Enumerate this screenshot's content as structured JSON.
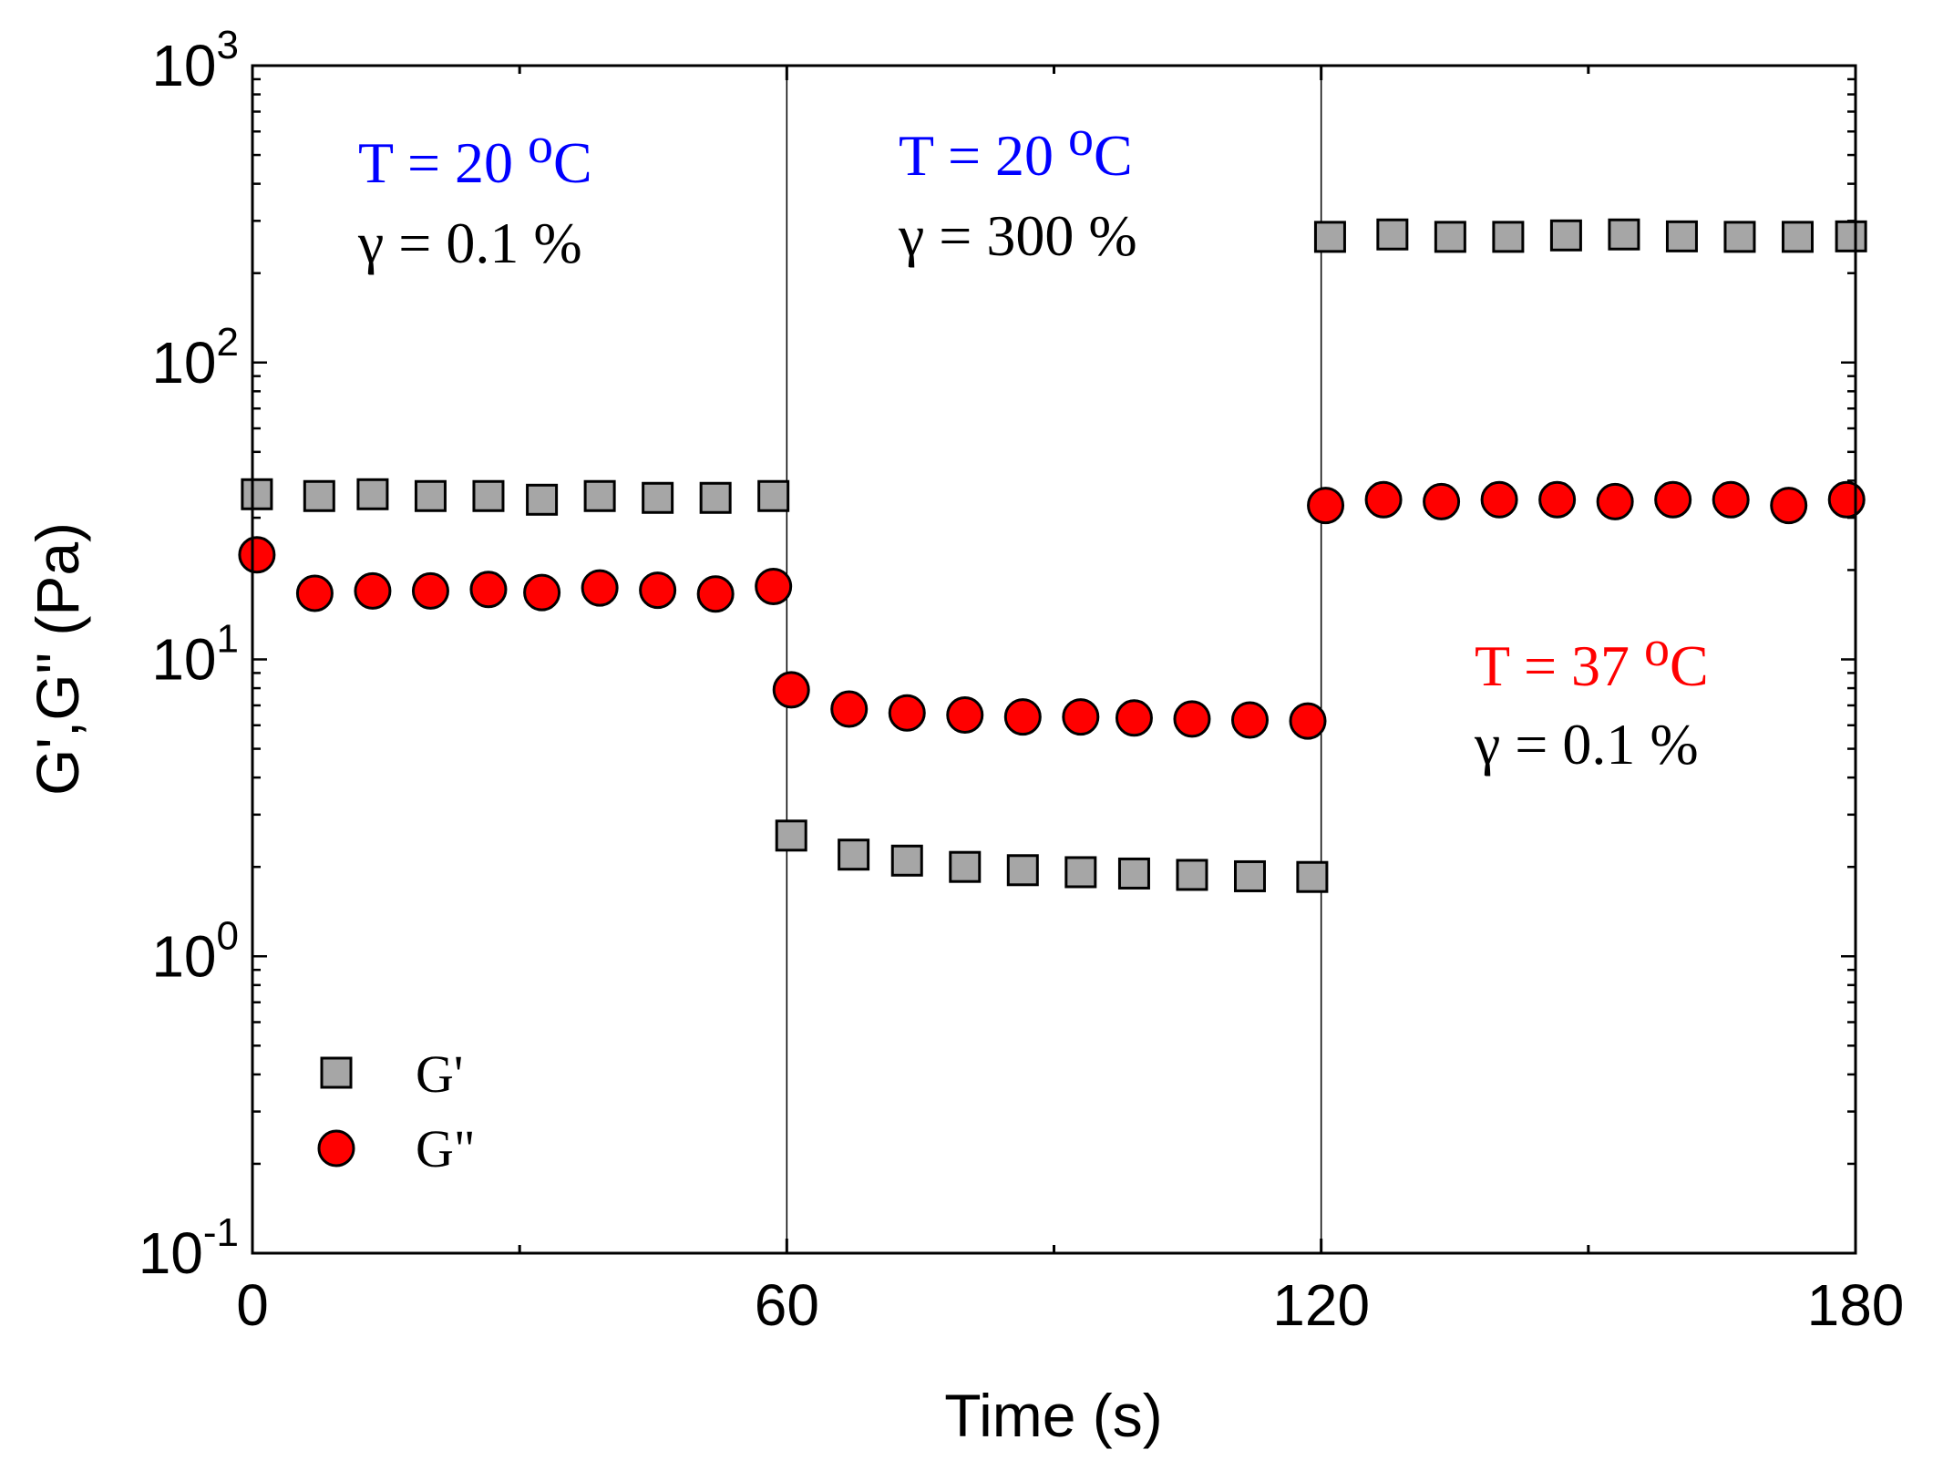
{
  "chart_data": {
    "type": "scatter",
    "title": "",
    "xlabel": "Time (s)",
    "ylabel": "G',G\" (Pa)",
    "xlim": [
      0,
      180
    ],
    "ylim": [
      0.1,
      1000
    ],
    "yscale": "log",
    "xticks": [
      0,
      60,
      120,
      180
    ],
    "xtick_labels": [
      "0",
      "60",
      "120",
      "180"
    ],
    "yticks": [
      {
        "value": 0.1,
        "base": "10",
        "exp": "-1"
      },
      {
        "value": 1,
        "base": "10",
        "exp": "0"
      },
      {
        "value": 10,
        "base": "10",
        "exp": "1"
      },
      {
        "value": 100,
        "base": "10",
        "exp": "2"
      },
      {
        "value": 1000,
        "base": "10",
        "exp": "3"
      }
    ],
    "vlines": [
      60,
      120
    ],
    "legend": {
      "position": "bottom-left"
    },
    "series": [
      {
        "name": "G'",
        "marker": "square",
        "color": "#a6a6a6",
        "x": [
          0.5,
          7.5,
          13.5,
          20,
          26.5,
          32.5,
          39,
          45.5,
          52,
          58.5,
          60.5,
          67.5,
          73.5,
          80,
          86.5,
          93,
          99,
          105.5,
          112,
          119,
          121,
          128,
          134.5,
          141,
          147.5,
          154,
          160.5,
          167,
          173.5,
          179.5
        ],
        "y": [
          36,
          35.5,
          36,
          35.5,
          35.5,
          34.5,
          35.5,
          35,
          35,
          35.5,
          2.55,
          2.2,
          2.1,
          2.0,
          1.95,
          1.92,
          1.9,
          1.88,
          1.86,
          1.85,
          265,
          270,
          265,
          265,
          268,
          270,
          266,
          265,
          265,
          266
        ]
      },
      {
        "name": "G\"",
        "marker": "circle",
        "color": "#ff0000",
        "x": [
          0.5,
          7,
          13.5,
          20,
          26.5,
          32.5,
          39,
          45.5,
          52,
          58.5,
          60.5,
          67,
          73.5,
          80,
          86.5,
          93,
          99,
          105.5,
          112,
          118.5,
          120.5,
          127,
          133.5,
          140,
          146.5,
          153,
          159.5,
          166,
          172.5,
          179
        ],
        "y": [
          22.5,
          16.7,
          17,
          17,
          17.2,
          16.8,
          17.4,
          17.1,
          16.6,
          17.6,
          7.9,
          6.8,
          6.6,
          6.5,
          6.4,
          6.4,
          6.35,
          6.3,
          6.25,
          6.2,
          33,
          34.5,
          34,
          34.5,
          34.5,
          34,
          34.5,
          34.5,
          33,
          34.5
        ]
      }
    ],
    "annotations": [
      {
        "line1": "T = 20 ",
        "sup": "o",
        "unit": "C",
        "line2": "γ = 0.1 %",
        "color1": "#0000ff"
      },
      {
        "line1": "T = 20 ",
        "sup": "o",
        "unit": "C",
        "line2": "γ = 300 %",
        "color1": "#0000ff"
      },
      {
        "line1": "T = 37 ",
        "sup": "o",
        "unit": "C",
        "line2": "γ = 0.1 %",
        "color1": "#ff0000"
      }
    ]
  }
}
